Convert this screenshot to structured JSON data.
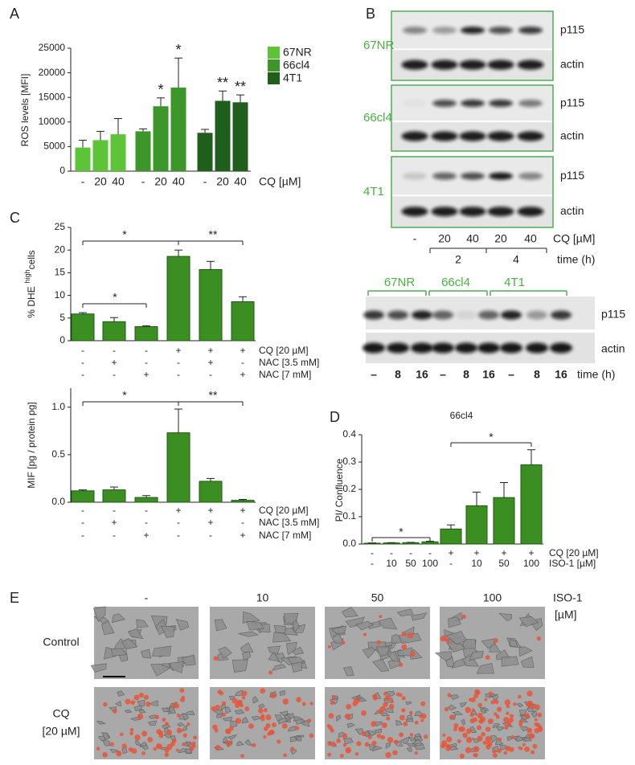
{
  "panel_labels": [
    "A",
    "B",
    "C",
    "D",
    "E"
  ],
  "chart_data": [
    {
      "type": "bar",
      "ylabel": "ROS levels [MFI]",
      "xlabel": "CQ [µM]",
      "categories": [
        "-",
        "20",
        "40"
      ],
      "ylim": [
        0,
        25000
      ],
      "yticks": [
        0,
        5000,
        10000,
        15000,
        20000,
        25000
      ],
      "series": [
        {
          "name": "67NR",
          "color": "#5cc436",
          "values": [
            4800,
            6300,
            7500
          ],
          "errors": [
            1500,
            1800,
            3200
          ],
          "annotations": [
            null,
            null,
            null
          ]
        },
        {
          "name": "66cl4",
          "color": "#3c962a",
          "values": [
            8100,
            13200,
            17000
          ],
          "errors": [
            500,
            1700,
            6000
          ],
          "annotations": [
            null,
            "*",
            "*"
          ]
        },
        {
          "name": "4T1",
          "color": "#1f5e1b",
          "values": [
            7800,
            14300,
            14000
          ],
          "errors": [
            700,
            2000,
            1500
          ],
          "annotations": [
            null,
            "**",
            "**"
          ]
        }
      ]
    },
    {
      "type": "bar",
      "ylabel_parts": [
        "% DHE",
        "high",
        "cells"
      ],
      "ylim": [
        0,
        25
      ],
      "yticks": [
        0,
        5,
        10,
        15,
        20,
        25
      ],
      "color": "#3b8e21",
      "values": [
        5.9,
        4.2,
        3.1,
        18.6,
        15.7,
        8.6
      ],
      "errors": [
        0.3,
        0.9,
        0.2,
        1.4,
        1.8,
        1.1
      ],
      "conditions": [
        {
          "label": "CQ [20 µM]",
          "levels": [
            "-",
            "-",
            "-",
            "+",
            "+",
            "+"
          ]
        },
        {
          "label": "NAC [3.5 mM]",
          "levels": [
            "-",
            "+",
            "-",
            "-",
            "+",
            "-"
          ]
        },
        {
          "label": "NAC [7 mM]",
          "levels": [
            "-",
            "-",
            "+",
            "-",
            "-",
            "+"
          ]
        }
      ],
      "significance": [
        "*",
        "**",
        "*"
      ]
    },
    {
      "type": "bar",
      "ylabel": "MIF [pg / protein pg]",
      "ylim": [
        0,
        1.2
      ],
      "yticks": [
        {
          "value": 0,
          "label": "0.0"
        },
        {
          "value": 0.5,
          "label": "0.5"
        },
        {
          "value": 1,
          "label": "1.0"
        }
      ],
      "color": "#3b8e21",
      "values": [
        0.12,
        0.13,
        0.05,
        0.73,
        0.22,
        0.02
      ],
      "errors": [
        0.01,
        0.03,
        0.02,
        0.25,
        0.03,
        0.01
      ],
      "conditions": [
        {
          "label": "CQ [20 µM]",
          "levels": [
            "-",
            "-",
            "-",
            "+",
            "+",
            "+"
          ]
        },
        {
          "label": "NAC [3.5 mM]",
          "levels": [
            "-",
            "+",
            "-",
            "-",
            "+",
            "-"
          ]
        },
        {
          "label": "NAC [7 mM]",
          "levels": [
            "-",
            "-",
            "+",
            "-",
            "-",
            "+"
          ]
        }
      ],
      "significance": [
        "*",
        "**"
      ]
    },
    {
      "type": "bar",
      "title": "66cl4",
      "ylabel": "PI/ Confluence",
      "ylim": [
        0,
        0.4
      ],
      "yticks": [
        {
          "value": 0,
          "label": "0.0"
        },
        {
          "value": 0.1,
          "label": "0.1"
        },
        {
          "value": 0.2,
          "label": "0.2"
        },
        {
          "value": 0.3,
          "label": "0.3"
        },
        {
          "value": 0.4,
          "label": "0.4"
        }
      ],
      "color": "#3b8e21",
      "values": [
        0.003,
        0.004,
        0.005,
        0.008,
        0.055,
        0.14,
        0.17,
        0.29
      ],
      "errors": [
        0.001,
        0.001,
        0.001,
        0.002,
        0.015,
        0.05,
        0.055,
        0.055
      ],
      "conditions": [
        {
          "label": "CQ [20 µM]",
          "levels": [
            "-",
            "-",
            "-",
            "-",
            "+",
            "+",
            "+",
            "+"
          ]
        },
        {
          "label": "ISO-1 [µM]",
          "levels": [
            "-",
            "10",
            "50",
            "100",
            "-",
            "10",
            "50",
            "100"
          ]
        }
      ],
      "significance": [
        "*",
        "*"
      ]
    }
  ],
  "blot_b": {
    "cell_lines": [
      "67NR",
      "66cl4",
      "4T1"
    ],
    "proteins": [
      "p115",
      "actin"
    ],
    "lanes": [
      "-",
      "20",
      "40",
      "20",
      "40"
    ],
    "lane_axis": "CQ [µM]",
    "times": [
      "2",
      "4"
    ],
    "time_axis": "time (h)"
  },
  "blot_time": {
    "cell_lines": [
      "67NR",
      "66cl4",
      "4T1"
    ],
    "proteins": [
      "p115",
      "actin"
    ],
    "lanes": [
      "–",
      "8",
      "16",
      "–",
      "8",
      "16",
      "–",
      "8",
      "16"
    ],
    "time_axis": "time (h)"
  },
  "micrographs": {
    "columns": [
      "-",
      "10",
      "50",
      "100"
    ],
    "column_axis": [
      "ISO-1",
      "[µM]"
    ],
    "rows": [
      [
        "Control"
      ],
      [
        "CQ",
        "[20 µM]"
      ]
    ]
  }
}
